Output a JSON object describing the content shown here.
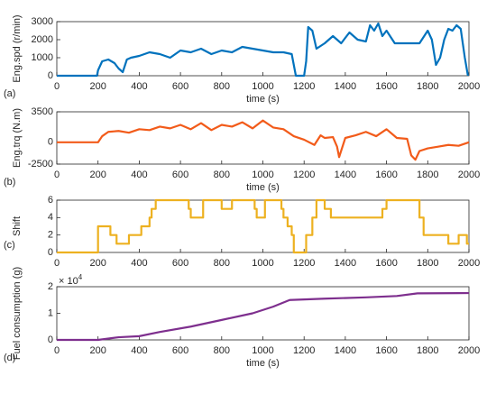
{
  "chart_data": [
    {
      "type": "line",
      "panel_label": "(a)",
      "ylabel": "Eng.spd (r/min)",
      "xlabel": "time (s)",
      "color": "#0072bd",
      "xlim": [
        0,
        2000
      ],
      "xticks": [
        0,
        200,
        400,
        600,
        800,
        1000,
        1200,
        1400,
        1600,
        1800,
        2000
      ],
      "ylim": [
        0,
        3000
      ],
      "yticks": [
        0,
        1000,
        2000,
        3000
      ],
      "x": [
        0,
        195,
        200,
        220,
        250,
        280,
        300,
        320,
        340,
        360,
        400,
        450,
        500,
        550,
        600,
        650,
        700,
        750,
        800,
        850,
        900,
        950,
        1000,
        1050,
        1100,
        1140,
        1160,
        1200,
        1210,
        1220,
        1240,
        1260,
        1300,
        1340,
        1380,
        1420,
        1460,
        1500,
        1520,
        1540,
        1560,
        1580,
        1600,
        1640,
        1700,
        1760,
        1800,
        1820,
        1840,
        1860,
        1880,
        1900,
        1920,
        1940,
        1960,
        1980,
        1995
      ],
      "values": [
        0,
        0,
        300,
        800,
        900,
        700,
        400,
        200,
        900,
        1000,
        1100,
        1300,
        1200,
        1000,
        1400,
        1300,
        1500,
        1200,
        1400,
        1300,
        1600,
        1500,
        1400,
        1300,
        1300,
        1200,
        0,
        0,
        800,
        2700,
        2500,
        1500,
        1800,
        2200,
        1800,
        2400,
        2000,
        1900,
        2800,
        2500,
        2900,
        2200,
        2500,
        1800,
        1800,
        1800,
        2500,
        2000,
        600,
        1000,
        2000,
        2600,
        2500,
        2800,
        2600,
        1000,
        0
      ]
    },
    {
      "type": "line",
      "panel_label": "(b)",
      "ylabel": "Eng.trq (N.m)",
      "xlabel": "time (s)",
      "color": "#f25b1a",
      "xlim": [
        0,
        2000
      ],
      "xticks": [
        0,
        200,
        400,
        600,
        800,
        1000,
        1200,
        1400,
        1600,
        1800,
        2000
      ],
      "ylim": [
        -2500,
        3500
      ],
      "yticks": [
        -2500,
        0,
        3500
      ],
      "x": [
        0,
        200,
        220,
        250,
        300,
        350,
        400,
        450,
        500,
        550,
        600,
        650,
        700,
        750,
        800,
        850,
        900,
        950,
        1000,
        1050,
        1100,
        1150,
        1200,
        1250,
        1280,
        1300,
        1340,
        1360,
        1370,
        1400,
        1450,
        1500,
        1550,
        1600,
        1650,
        1700,
        1720,
        1740,
        1760,
        1800,
        1850,
        1900,
        1950,
        2000
      ],
      "values": [
        0,
        0,
        700,
        1200,
        1300,
        1100,
        1500,
        1400,
        1800,
        1600,
        2000,
        1500,
        2200,
        1400,
        2000,
        1800,
        2300,
        1600,
        2500,
        1700,
        1500,
        700,
        300,
        -300,
        800,
        500,
        600,
        -500,
        -1700,
        500,
        800,
        1200,
        700,
        1500,
        500,
        400,
        -1500,
        -2000,
        -1000,
        -700,
        -500,
        -300,
        -400,
        0
      ]
    },
    {
      "type": "step",
      "panel_label": "(c)",
      "ylabel": "Shift",
      "color": "#edb120",
      "xlim": [
        0,
        2000
      ],
      "xticks": [
        0,
        200,
        400,
        600,
        800,
        1000,
        1200,
        1400,
        1600,
        1800,
        2000
      ],
      "ylim": [
        0,
        6
      ],
      "yticks": [
        0,
        2,
        4,
        6
      ],
      "x": [
        0,
        200,
        260,
        290,
        350,
        410,
        450,
        460,
        480,
        640,
        650,
        710,
        800,
        850,
        960,
        970,
        1010,
        1090,
        1100,
        1120,
        1140,
        1150,
        1210,
        1240,
        1260,
        1300,
        1330,
        1580,
        1600,
        1760,
        1780,
        1900,
        1950,
        1990,
        2000
      ],
      "values": [
        0,
        3,
        2,
        1,
        2,
        3,
        4,
        5,
        6,
        5,
        4,
        6,
        5,
        6,
        5,
        4,
        6,
        5,
        4,
        3,
        2,
        0,
        2,
        4,
        6,
        5,
        4,
        5,
        6,
        4,
        2,
        1,
        2,
        1,
        1
      ]
    },
    {
      "type": "line",
      "panel_label": "(d)",
      "ylabel": "Fuel consumption (g)",
      "xlabel": "time (s)",
      "color": "#7e2f8e",
      "y_scale_base": "× 10",
      "y_scale_power": "4",
      "xlim": [
        0,
        2000
      ],
      "xticks": [
        0,
        200,
        400,
        600,
        800,
        1000,
        1200,
        1400,
        1600,
        1800,
        2000
      ],
      "ylim": [
        0,
        20000
      ],
      "yticks": [
        0,
        {
          "value": 10000,
          "label": "1"
        },
        {
          "value": 20000,
          "label": "2"
        }
      ],
      "x": [
        0,
        200,
        300,
        400,
        500,
        650,
        800,
        950,
        1050,
        1130,
        1300,
        1500,
        1650,
        1750,
        2000
      ],
      "values": [
        0,
        0,
        1000,
        1400,
        3000,
        5000,
        7500,
        10000,
        12500,
        15000,
        15500,
        16000,
        16500,
        17500,
        17600
      ]
    }
  ]
}
